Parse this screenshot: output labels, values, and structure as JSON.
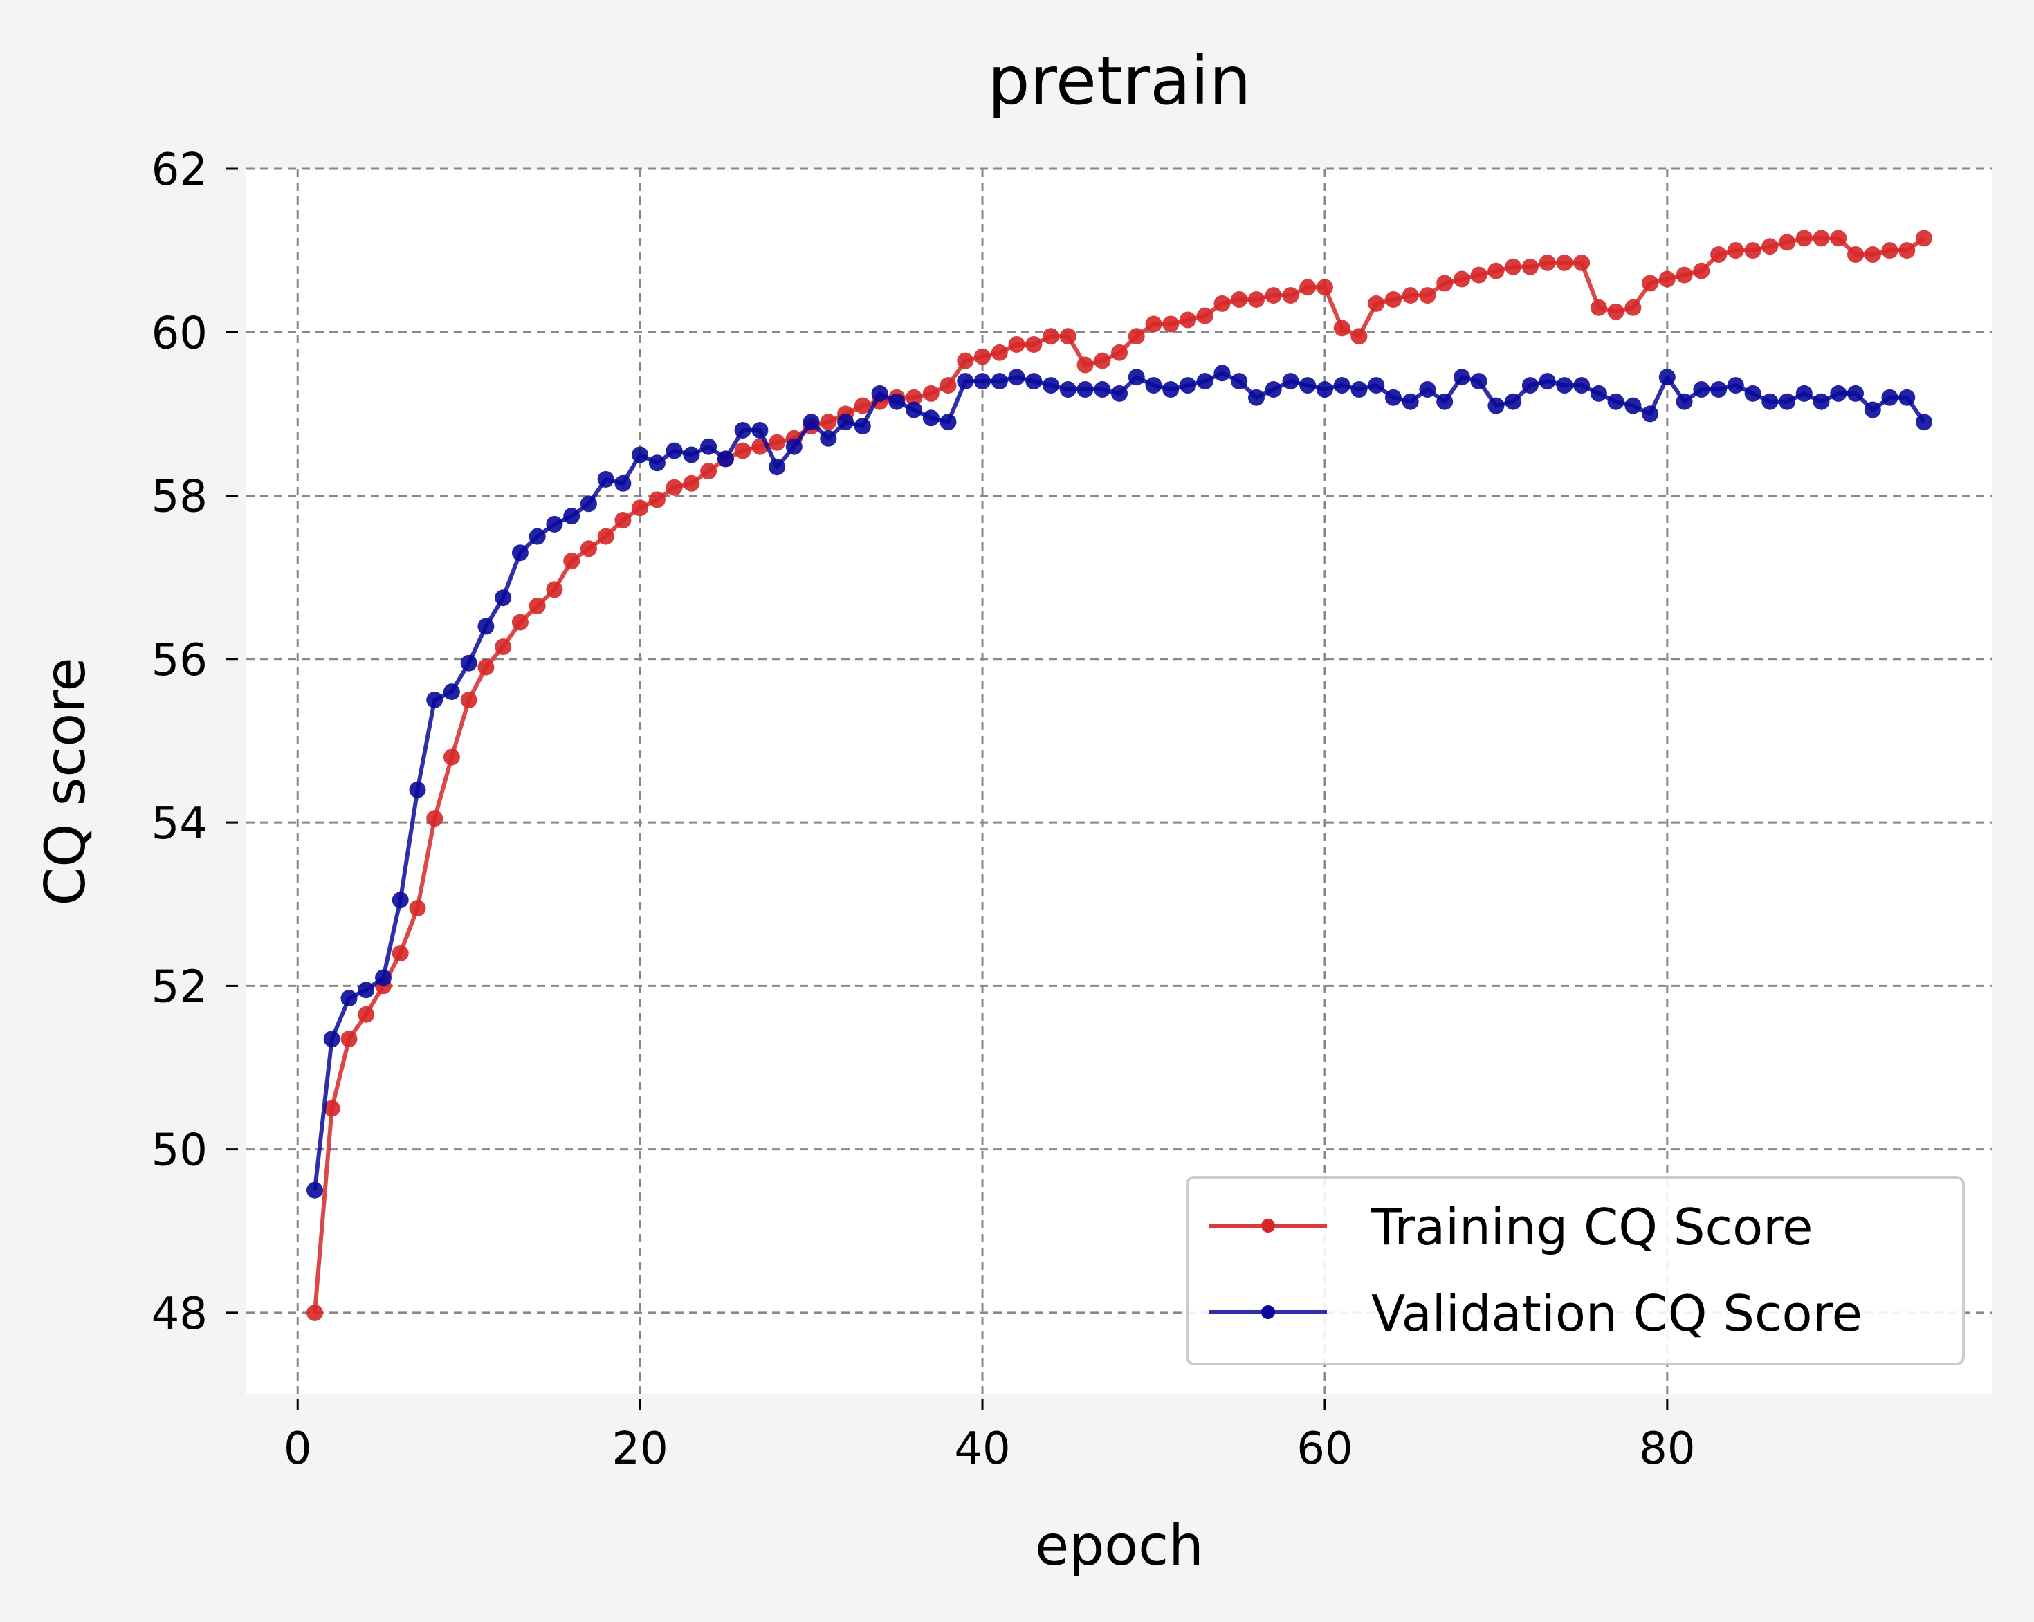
{
  "chart_data": {
    "type": "line",
    "title": "pretrain",
    "xlabel": "epoch",
    "ylabel": "CQ score",
    "xlim": [
      -3,
      99
    ],
    "ylim": [
      47,
      62
    ],
    "xticks": [
      0,
      20,
      40,
      60,
      80
    ],
    "yticks": [
      48,
      50,
      52,
      54,
      56,
      58,
      60,
      62
    ],
    "grid": true,
    "legend_position": "lower right",
    "x": [
      1,
      2,
      3,
      4,
      5,
      6,
      7,
      8,
      9,
      10,
      11,
      12,
      13,
      14,
      15,
      16,
      17,
      18,
      19,
      20,
      21,
      22,
      23,
      24,
      25,
      26,
      27,
      28,
      29,
      30,
      31,
      32,
      33,
      34,
      35,
      36,
      37,
      38,
      39,
      40,
      41,
      42,
      43,
      44,
      45,
      46,
      47,
      48,
      49,
      50,
      51,
      52,
      53,
      54,
      55,
      56,
      57,
      58,
      59,
      60,
      61,
      62,
      63,
      64,
      65,
      66,
      67,
      68,
      69,
      70,
      71,
      72,
      73,
      74,
      75,
      76,
      77,
      78,
      79,
      80,
      81,
      82,
      83,
      84,
      85,
      86,
      87,
      88,
      89,
      90,
      91,
      92,
      93,
      94,
      95
    ],
    "series": [
      {
        "name": "Training CQ Score",
        "color": "#d62728",
        "values": [
          48.0,
          50.5,
          51.35,
          51.65,
          52.0,
          52.4,
          52.95,
          54.05,
          54.8,
          55.5,
          55.9,
          56.15,
          56.45,
          56.65,
          56.85,
          57.2,
          57.35,
          57.5,
          57.7,
          57.85,
          57.95,
          58.1,
          58.15,
          58.3,
          58.45,
          58.55,
          58.6,
          58.65,
          58.7,
          58.85,
          58.9,
          59.0,
          59.1,
          59.15,
          59.2,
          59.2,
          59.25,
          59.35,
          59.65,
          59.7,
          59.75,
          59.85,
          59.85,
          59.95,
          59.95,
          59.6,
          59.65,
          59.75,
          59.95,
          60.1,
          60.1,
          60.15,
          60.2,
          60.35,
          60.4,
          60.4,
          60.45,
          60.45,
          60.55,
          60.55,
          60.05,
          59.95,
          60.35,
          60.4,
          60.45,
          60.45,
          60.6,
          60.65,
          60.7,
          60.75,
          60.8,
          60.8,
          60.85,
          60.85,
          60.85,
          60.3,
          60.25,
          60.3,
          60.6,
          60.65,
          60.7,
          60.75,
          60.95,
          61.0,
          61.0,
          61.05,
          61.1,
          61.15,
          61.15,
          61.15,
          60.95,
          60.95,
          61.0,
          61.0,
          61.15
        ]
      },
      {
        "name": "Validation CQ Score",
        "color": "#0a0a9a",
        "values": [
          49.5,
          51.35,
          51.85,
          51.95,
          52.1,
          53.05,
          54.4,
          55.5,
          55.6,
          55.95,
          56.4,
          56.75,
          57.3,
          57.5,
          57.65,
          57.75,
          57.9,
          58.2,
          58.15,
          58.5,
          58.4,
          58.55,
          58.5,
          58.6,
          58.45,
          58.8,
          58.8,
          58.35,
          58.6,
          58.9,
          58.7,
          58.9,
          58.85,
          59.25,
          59.15,
          59.05,
          58.95,
          58.9,
          59.4,
          59.4,
          59.4,
          59.45,
          59.4,
          59.35,
          59.3,
          59.3,
          59.3,
          59.25,
          59.45,
          59.35,
          59.3,
          59.35,
          59.4,
          59.5,
          59.4,
          59.2,
          59.3,
          59.4,
          59.35,
          59.3,
          59.35,
          59.3,
          59.35,
          59.2,
          59.15,
          59.3,
          59.15,
          59.45,
          59.4,
          59.1,
          59.15,
          59.35,
          59.4,
          59.35,
          59.35,
          59.25,
          59.15,
          59.1,
          59.0,
          59.45,
          59.15,
          59.3,
          59.3,
          59.35,
          59.25,
          59.15,
          59.15,
          59.25,
          59.15,
          59.25,
          59.25,
          59.05,
          59.2,
          59.2,
          58.9
        ]
      }
    ]
  }
}
